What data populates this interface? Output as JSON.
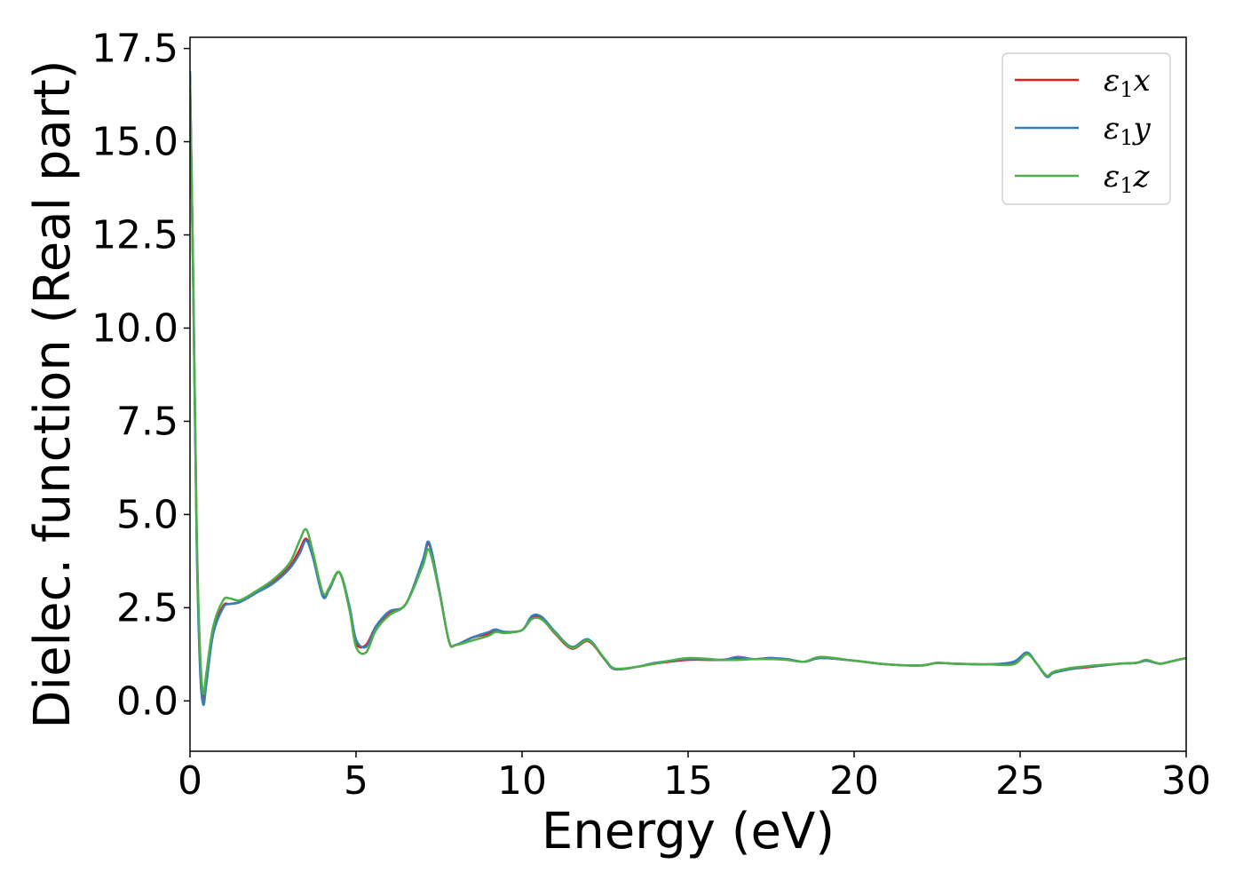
{
  "chart_data": {
    "type": "line",
    "xlabel": "Energy (eV)",
    "ylabel": "Dielec. function (Real part)",
    "xlim": [
      0,
      30
    ],
    "ylim": [
      -1.35,
      17.8
    ],
    "xticks": [
      0,
      5,
      10,
      15,
      20,
      25,
      30
    ],
    "xtick_labels": [
      "0",
      "5",
      "10",
      "15",
      "20",
      "25",
      "30"
    ],
    "yticks": [
      0,
      2.5,
      5,
      7.5,
      10,
      12.5,
      15,
      17.5
    ],
    "ytick_labels": [
      "0.0",
      "2.5",
      "5.0",
      "7.5",
      "10.0",
      "12.5",
      "15.0",
      "17.5"
    ],
    "grid": false,
    "legend_position": "top-right",
    "series": [
      {
        "name": "ε",
        "subscript": "1",
        "suffix": "x",
        "color": "#e41a1c",
        "x": [
          0,
          0.1,
          0.2,
          0.3,
          0.4,
          0.5,
          0.7,
          1.0,
          1.2,
          1.5,
          2.0,
          2.5,
          3.0,
          3.3,
          3.5,
          3.7,
          4.0,
          4.2,
          4.5,
          4.8,
          5.0,
          5.3,
          5.6,
          6.0,
          6.5,
          7.0,
          7.2,
          7.5,
          7.8,
          8.0,
          8.5,
          9.0,
          9.2,
          9.5,
          10.0,
          10.3,
          10.6,
          11.0,
          11.5,
          12.0,
          12.5,
          12.8,
          13.5,
          14.0,
          15.0,
          16.0,
          16.5,
          17.0,
          17.5,
          18.0,
          18.5,
          19.0,
          20.0,
          21.0,
          22.0,
          22.5,
          23.0,
          24.0,
          24.8,
          25.2,
          25.5,
          25.8,
          26.0,
          26.5,
          27.0,
          27.5,
          28.0,
          28.5,
          28.8,
          29.2,
          29.5,
          30.0
        ],
        "y": [
          16.8,
          11.0,
          4.5,
          1.2,
          0.05,
          0.6,
          1.9,
          2.55,
          2.6,
          2.65,
          2.9,
          3.2,
          3.6,
          4.05,
          4.35,
          3.9,
          2.85,
          3.0,
          3.45,
          2.5,
          1.55,
          1.5,
          2.0,
          2.35,
          2.6,
          3.7,
          4.2,
          3.0,
          1.6,
          1.5,
          1.7,
          1.8,
          1.9,
          1.85,
          1.9,
          2.25,
          2.2,
          1.8,
          1.4,
          1.6,
          1.1,
          0.85,
          0.92,
          1.0,
          1.1,
          1.1,
          1.15,
          1.12,
          1.15,
          1.1,
          1.05,
          1.15,
          1.08,
          0.98,
          0.95,
          1.02,
          1.0,
          0.98,
          1.02,
          1.28,
          1.0,
          0.65,
          0.75,
          0.85,
          0.9,
          0.95,
          1.0,
          1.02,
          1.08,
          1.0,
          1.05,
          1.15
        ]
      },
      {
        "name": "ε",
        "subscript": "1",
        "suffix": "y",
        "color": "#377eb8",
        "x": [
          0,
          0.1,
          0.2,
          0.3,
          0.4,
          0.5,
          0.7,
          1.0,
          1.2,
          1.5,
          2.0,
          2.5,
          3.0,
          3.3,
          3.5,
          3.7,
          4.0,
          4.2,
          4.5,
          4.8,
          5.0,
          5.3,
          5.6,
          6.0,
          6.5,
          7.0,
          7.2,
          7.5,
          7.8,
          8.0,
          8.5,
          9.0,
          9.2,
          9.5,
          10.0,
          10.3,
          10.6,
          11.0,
          11.5,
          12.0,
          12.5,
          12.8,
          13.5,
          14.0,
          15.0,
          16.0,
          16.5,
          17.0,
          17.5,
          18.0,
          18.5,
          19.0,
          20.0,
          21.0,
          22.0,
          22.5,
          23.0,
          24.0,
          24.8,
          25.2,
          25.5,
          25.8,
          26.0,
          26.5,
          27.0,
          27.5,
          28.0,
          28.5,
          28.8,
          29.2,
          29.5,
          30.0
        ],
        "y": [
          16.9,
          11.0,
          4.3,
          0.9,
          -0.1,
          0.5,
          1.8,
          2.5,
          2.6,
          2.65,
          2.9,
          3.15,
          3.55,
          3.95,
          4.3,
          3.85,
          2.8,
          3.0,
          3.45,
          2.55,
          1.65,
          1.45,
          2.0,
          2.4,
          2.6,
          3.75,
          4.25,
          3.0,
          1.6,
          1.5,
          1.7,
          1.85,
          1.92,
          1.85,
          1.9,
          2.28,
          2.25,
          1.85,
          1.45,
          1.65,
          1.1,
          0.85,
          0.92,
          1.02,
          1.12,
          1.1,
          1.18,
          1.12,
          1.15,
          1.12,
          1.05,
          1.15,
          1.08,
          0.98,
          0.95,
          1.02,
          1.0,
          0.98,
          1.05,
          1.3,
          1.0,
          0.65,
          0.75,
          0.85,
          0.92,
          0.95,
          1.0,
          1.02,
          1.08,
          1.0,
          1.05,
          1.15
        ]
      },
      {
        "name": "ε",
        "subscript": "1",
        "suffix": "z",
        "color": "#4daf4a",
        "x": [
          0,
          0.1,
          0.2,
          0.3,
          0.4,
          0.5,
          0.7,
          1.0,
          1.2,
          1.5,
          2.0,
          2.5,
          3.0,
          3.3,
          3.5,
          3.7,
          4.0,
          4.2,
          4.5,
          4.8,
          5.0,
          5.3,
          5.6,
          6.0,
          6.5,
          7.0,
          7.2,
          7.5,
          7.8,
          8.0,
          8.5,
          9.0,
          9.2,
          9.5,
          10.0,
          10.3,
          10.6,
          11.0,
          11.5,
          12.0,
          12.5,
          12.8,
          13.5,
          14.0,
          15.0,
          16.0,
          16.5,
          17.0,
          17.5,
          18.0,
          18.5,
          19.0,
          20.0,
          21.0,
          22.0,
          22.5,
          23.0,
          24.0,
          24.8,
          25.2,
          25.5,
          25.8,
          26.0,
          26.5,
          27.0,
          27.5,
          28.0,
          28.5,
          28.8,
          29.2,
          29.5,
          30.0
        ],
        "y": [
          16.5,
          11.2,
          4.7,
          1.4,
          0.2,
          0.8,
          2.0,
          2.7,
          2.75,
          2.7,
          2.95,
          3.25,
          3.7,
          4.3,
          4.6,
          4.0,
          2.9,
          3.05,
          3.45,
          2.45,
          1.45,
          1.3,
          1.9,
          2.3,
          2.6,
          3.6,
          4.05,
          2.95,
          1.6,
          1.5,
          1.62,
          1.75,
          1.85,
          1.82,
          1.9,
          2.2,
          2.18,
          1.82,
          1.42,
          1.62,
          1.12,
          0.87,
          0.92,
          1.0,
          1.15,
          1.1,
          1.1,
          1.12,
          1.12,
          1.1,
          1.05,
          1.18,
          1.08,
          0.98,
          0.95,
          1.02,
          1.0,
          0.98,
          0.98,
          1.25,
          1.0,
          0.68,
          0.78,
          0.88,
          0.93,
          0.97,
          1.0,
          1.02,
          1.1,
          1.0,
          1.05,
          1.15
        ]
      }
    ]
  }
}
